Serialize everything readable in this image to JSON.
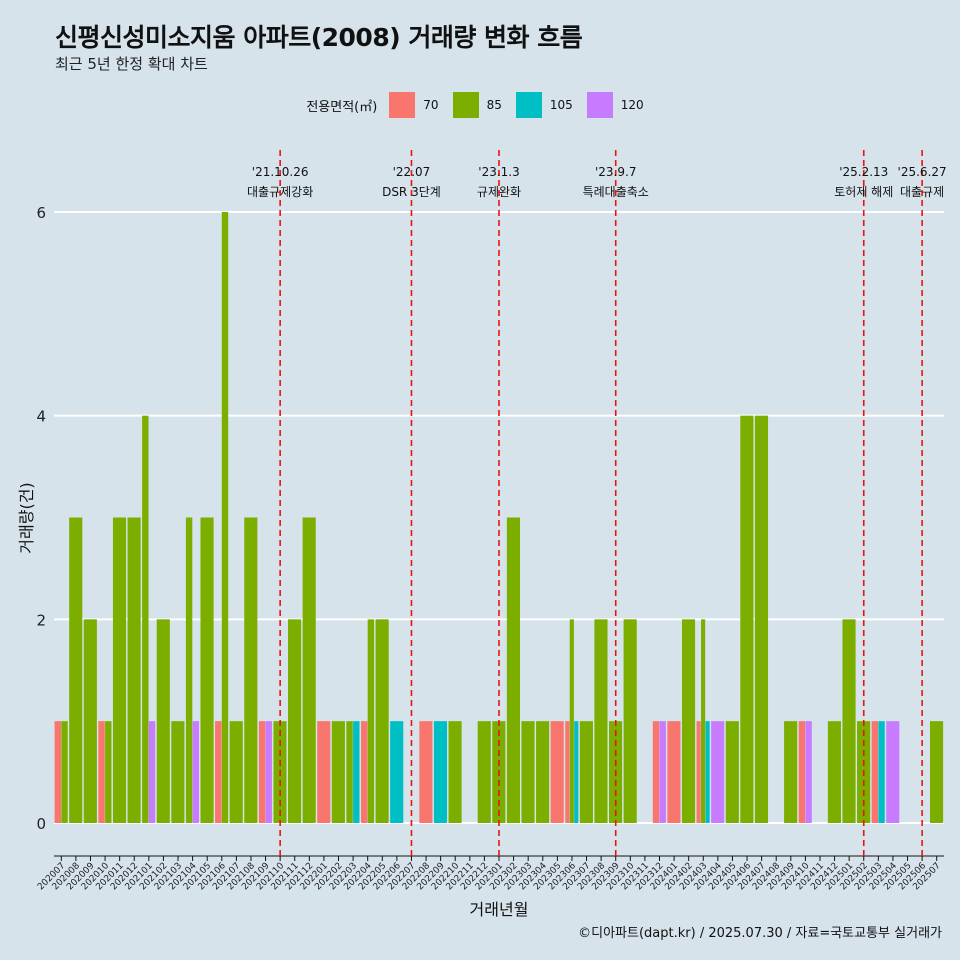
{
  "title": "신평신성미소지움 아파트(2008) 거래량 변화 흐름",
  "subtitle": "최근 5년 한정 확대 차트",
  "caption": "©디아파트(dapt.kr) / 2025.07.30 / 자료=국토교통부 실거래가",
  "colors": {
    "70": "#f8766d",
    "85": "#7cae00",
    "105": "#00bfc4",
    "120": "#c77cff",
    "event_line": "#ee1111",
    "grid": "#ffffff",
    "background": "#d6e3eb"
  },
  "legend": {
    "title": "전용면적(㎡)",
    "items": [
      {
        "key": "70",
        "label": "70"
      },
      {
        "key": "85",
        "label": "85"
      },
      {
        "key": "105",
        "label": "105"
      },
      {
        "key": "120",
        "label": "120"
      }
    ]
  },
  "chart_data": {
    "type": "bar",
    "xlabel": "거래년월",
    "ylabel": "거래량(건)",
    "ylim": [
      0,
      6
    ],
    "yticks": [
      0,
      2,
      4,
      6
    ],
    "grid": true,
    "legend_position": "top",
    "categories": [
      "202007",
      "202008",
      "202009",
      "202010",
      "202011",
      "202012",
      "202101",
      "202102",
      "202103",
      "202104",
      "202105",
      "202106",
      "202107",
      "202108",
      "202109",
      "202110",
      "202111",
      "202112",
      "202201",
      "202202",
      "202203",
      "202204",
      "202205",
      "202206",
      "202207",
      "202208",
      "202209",
      "202210",
      "202211",
      "202212",
      "202301",
      "202302",
      "202303",
      "202304",
      "202305",
      "202306",
      "202307",
      "202308",
      "202309",
      "202310",
      "202311",
      "202312",
      "202401",
      "202402",
      "202403",
      "202404",
      "202405",
      "202406",
      "202407",
      "202408",
      "202409",
      "202410",
      "202411",
      "202412",
      "202501",
      "202502",
      "202503",
      "202504",
      "202505",
      "202506",
      "202507"
    ],
    "series": [
      {
        "name": "70",
        "values": [
          1,
          0,
          0,
          1,
          0,
          0,
          0,
          0,
          0,
          0,
          0,
          1,
          0,
          0,
          1,
          0,
          0,
          0,
          1,
          0,
          0,
          1,
          0,
          0,
          0,
          1,
          0,
          0,
          0,
          0,
          0,
          0,
          0,
          0,
          1,
          1,
          0,
          0,
          0,
          0,
          0,
          1,
          1,
          0,
          1,
          0,
          0,
          0,
          0,
          0,
          0,
          1,
          0,
          0,
          0,
          0,
          1,
          0,
          0,
          0,
          0
        ]
      },
      {
        "name": "85",
        "values": [
          1,
          3,
          2,
          1,
          3,
          3,
          4,
          2,
          1,
          3,
          3,
          6,
          1,
          3,
          0,
          1,
          2,
          3,
          0,
          1,
          1,
          2,
          2,
          0,
          0,
          0,
          0,
          1,
          0,
          1,
          1,
          3,
          1,
          1,
          0,
          2,
          1,
          2,
          1,
          2,
          0,
          0,
          0,
          2,
          2,
          0,
          1,
          4,
          4,
          0,
          1,
          0,
          0,
          1,
          2,
          1,
          0,
          0,
          0,
          0,
          1
        ]
      },
      {
        "name": "105",
        "values": [
          0,
          0,
          0,
          0,
          0,
          0,
          0,
          0,
          0,
          0,
          0,
          0,
          0,
          0,
          0,
          0,
          0,
          0,
          0,
          0,
          1,
          0,
          0,
          1,
          0,
          0,
          1,
          0,
          0,
          0,
          0,
          0,
          0,
          0,
          0,
          1,
          0,
          0,
          0,
          0,
          0,
          0,
          0,
          0,
          1,
          0,
          0,
          0,
          0,
          0,
          0,
          0,
          0,
          0,
          0,
          0,
          1,
          0,
          0,
          0,
          0
        ]
      },
      {
        "name": "120",
        "values": [
          0,
          0,
          0,
          0,
          0,
          0,
          1,
          0,
          0,
          1,
          0,
          0,
          0,
          0,
          1,
          0,
          0,
          0,
          0,
          0,
          0,
          0,
          0,
          0,
          0,
          0,
          0,
          0,
          0,
          0,
          0,
          0,
          0,
          0,
          0,
          0,
          0,
          0,
          0,
          0,
          0,
          1,
          0,
          0,
          0,
          1,
          0,
          0,
          0,
          0,
          0,
          1,
          0,
          0,
          0,
          0,
          0,
          1,
          0,
          0,
          0
        ]
      }
    ],
    "events": [
      {
        "category": "202110",
        "date": "'21.10.26",
        "label": "대출규제강화"
      },
      {
        "category": "202207",
        "date": "'22.07",
        "label": "DSR 3단계"
      },
      {
        "category": "202301",
        "date": "'23.1.3",
        "label": "규제완화"
      },
      {
        "category": "202309",
        "date": "'23.9.7",
        "label": "특례대출축소"
      },
      {
        "category": "202502",
        "date": "'25.2.13",
        "label": "토허제 해제"
      },
      {
        "category": "202506",
        "date": "'25.6.27",
        "label": "대출규제"
      }
    ]
  }
}
